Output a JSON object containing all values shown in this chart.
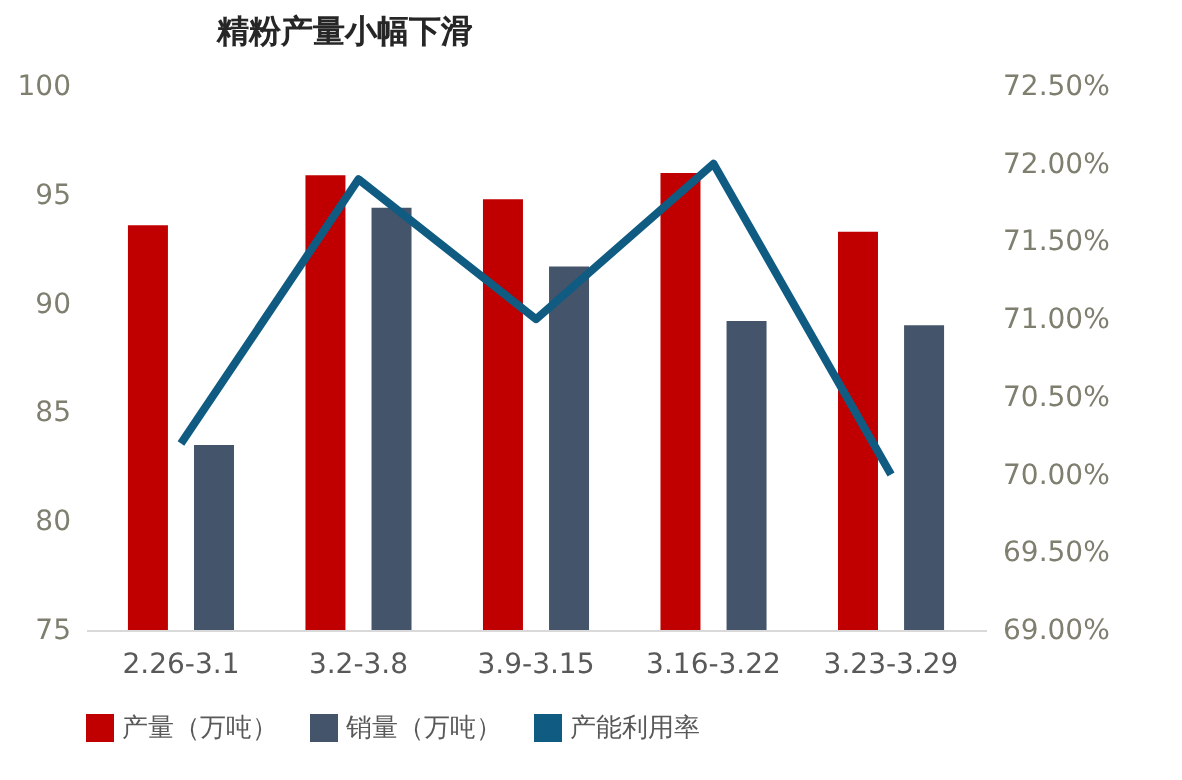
{
  "chart_data": {
    "type": "bar",
    "title": "精粉产量小幅下滑",
    "categories": [
      "2.26-3.1",
      "3.2-3.8",
      "3.9-3.15",
      "3.16-3.22",
      "3.23-3.29"
    ],
    "series": [
      {
        "name": "产量（万吨）",
        "color": "#c00000",
        "values": [
          93.6,
          95.9,
          94.8,
          96.0,
          93.3
        ]
      },
      {
        "name": "销量（万吨）",
        "color": "#44546a",
        "values": [
          83.5,
          94.4,
          91.7,
          89.2,
          89.0
        ]
      },
      {
        "name": "产能利用率",
        "type": "line",
        "axis": "y2",
        "color": "#0f5b82",
        "values": [
          70.2,
          71.9,
          71.0,
          72.0,
          70.0
        ]
      }
    ],
    "ylim": [
      75,
      100
    ],
    "yticks": [
      75,
      80,
      85,
      90,
      95,
      100
    ],
    "y2lim": [
      69,
      72.5
    ],
    "y2ticks": [
      {
        "value": 69,
        "label": "69.00%"
      },
      {
        "value": 69.5,
        "label": "69.50%"
      },
      {
        "value": 70,
        "label": "70.00%"
      },
      {
        "value": 70.5,
        "label": "70.50%"
      },
      {
        "value": 71,
        "label": "71.00%"
      },
      {
        "value": 71.5,
        "label": "71.50%"
      },
      {
        "value": 72,
        "label": "72.00%"
      },
      {
        "value": 72.5,
        "label": "72.50%"
      }
    ],
    "grid": false,
    "legend": "bottom",
    "marker": "none",
    "line_style": "solid"
  }
}
